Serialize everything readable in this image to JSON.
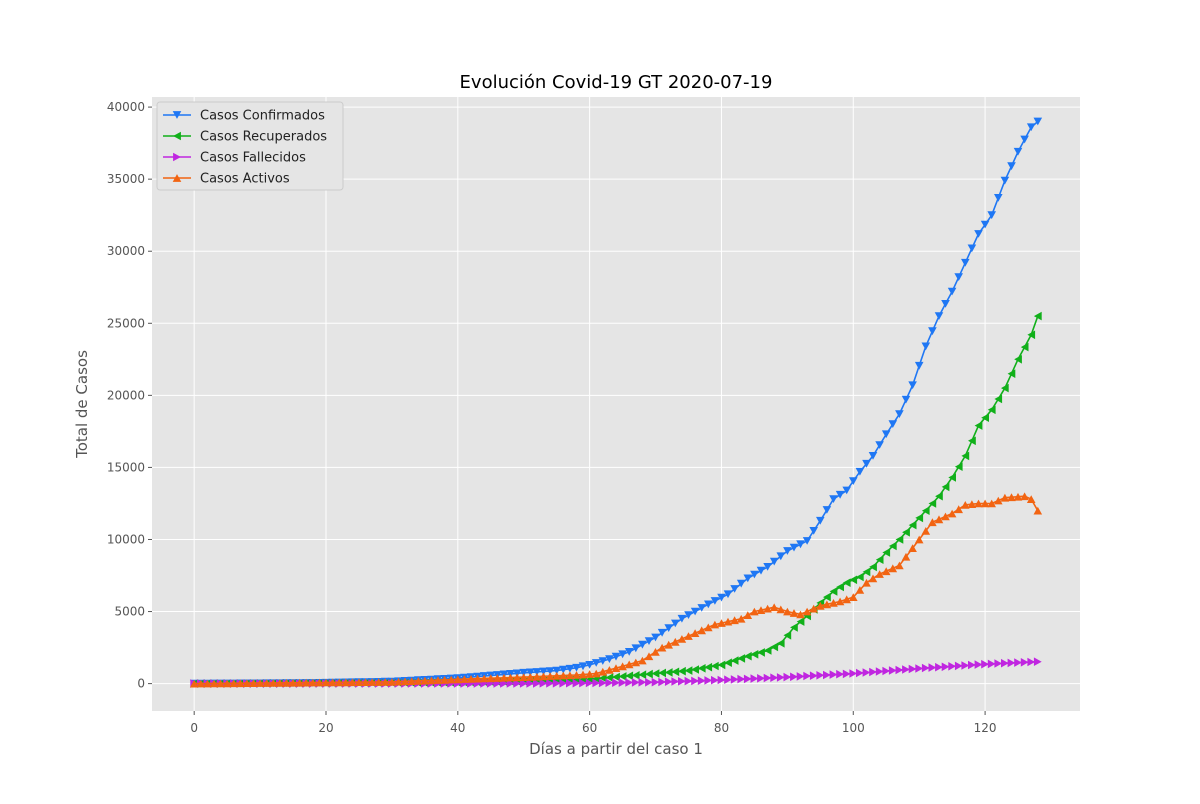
{
  "chart_data": {
    "type": "line",
    "title": "Evolución Covid-19 GT 2020-07-19",
    "xlabel": "Días a partir del caso 1",
    "ylabel": "Total de Casos",
    "xlim": [
      -6.4,
      134.4
    ],
    "ylim": [
      -1900,
      40700
    ],
    "x_ticks": [
      0,
      20,
      40,
      60,
      80,
      100,
      120
    ],
    "y_ticks": [
      0,
      5000,
      10000,
      15000,
      20000,
      25000,
      30000,
      35000,
      40000
    ],
    "grid": true,
    "legend_position": "upper-left",
    "x_range": [
      0,
      128
    ],
    "series": [
      {
        "name": "Casos Confirmados",
        "color": "#1f77f4",
        "marker": "triangle-down",
        "anchors": [
          [
            0,
            1
          ],
          [
            15,
            30
          ],
          [
            20,
            60
          ],
          [
            30,
            140
          ],
          [
            40,
            380
          ],
          [
            50,
            750
          ],
          [
            55,
            900
          ],
          [
            58,
            1100
          ],
          [
            60,
            1300
          ],
          [
            63,
            1700
          ],
          [
            66,
            2200
          ],
          [
            70,
            3200
          ],
          [
            74,
            4500
          ],
          [
            78,
            5500
          ],
          [
            81,
            6200
          ],
          [
            84,
            7300
          ],
          [
            87,
            8100
          ],
          [
            90,
            9200
          ],
          [
            93,
            9900
          ],
          [
            95,
            11300
          ],
          [
            97,
            12800
          ],
          [
            99,
            13400
          ],
          [
            101,
            14700
          ],
          [
            103,
            15800
          ],
          [
            105,
            17300
          ],
          [
            107,
            18700
          ],
          [
            109,
            20700
          ],
          [
            111,
            23400
          ],
          [
            113,
            25500
          ],
          [
            115,
            27200
          ],
          [
            117,
            29200
          ],
          [
            119,
            31200
          ],
          [
            121,
            32500
          ],
          [
            123,
            34900
          ],
          [
            125,
            36900
          ],
          [
            127,
            38600
          ],
          [
            128,
            39000
          ]
        ]
      },
      {
        "name": "Casos Recuperados",
        "color": "#11b01a",
        "marker": "triangle-left",
        "anchors": [
          [
            0,
            0
          ],
          [
            40,
            60
          ],
          [
            50,
            150
          ],
          [
            60,
            300
          ],
          [
            65,
            500
          ],
          [
            70,
            700
          ],
          [
            75,
            900
          ],
          [
            80,
            1300
          ],
          [
            84,
            1900
          ],
          [
            87,
            2300
          ],
          [
            89,
            2800
          ],
          [
            91,
            3900
          ],
          [
            93,
            4700
          ],
          [
            95,
            5600
          ],
          [
            97,
            6400
          ],
          [
            99,
            7000
          ],
          [
            101,
            7400
          ],
          [
            103,
            8100
          ],
          [
            105,
            9100
          ],
          [
            107,
            10000
          ],
          [
            109,
            11000
          ],
          [
            111,
            12000
          ],
          [
            113,
            13000
          ],
          [
            115,
            14300
          ],
          [
            117,
            15800
          ],
          [
            119,
            17900
          ],
          [
            121,
            19000
          ],
          [
            123,
            20500
          ],
          [
            125,
            22500
          ],
          [
            127,
            24200
          ],
          [
            128,
            25500
          ]
        ]
      },
      {
        "name": "Casos Fallecidos",
        "color": "#c026e0",
        "marker": "triangle-right",
        "anchors": [
          [
            0,
            0
          ],
          [
            40,
            10
          ],
          [
            55,
            20
          ],
          [
            60,
            40
          ],
          [
            70,
            100
          ],
          [
            80,
            250
          ],
          [
            90,
            450
          ],
          [
            100,
            700
          ],
          [
            110,
            1050
          ],
          [
            120,
            1350
          ],
          [
            128,
            1520
          ]
        ]
      },
      {
        "name": "Casos Activos",
        "color": "#f26412",
        "marker": "triangle-up",
        "anchors": [
          [
            0,
            0
          ],
          [
            30,
            120
          ],
          [
            40,
            300
          ],
          [
            50,
            450
          ],
          [
            58,
            600
          ],
          [
            61,
            700
          ],
          [
            65,
            1200
          ],
          [
            68,
            1600
          ],
          [
            71,
            2500
          ],
          [
            75,
            3300
          ],
          [
            79,
            4100
          ],
          [
            83,
            4500
          ],
          [
            85,
            5000
          ],
          [
            88,
            5300
          ],
          [
            90,
            5000
          ],
          [
            92,
            4800
          ],
          [
            95,
            5400
          ],
          [
            98,
            5700
          ],
          [
            100,
            6000
          ],
          [
            102,
            7000
          ],
          [
            104,
            7600
          ],
          [
            107,
            8200
          ],
          [
            110,
            10000
          ],
          [
            112,
            11200
          ],
          [
            115,
            11800
          ],
          [
            117,
            12400
          ],
          [
            119,
            12500
          ],
          [
            121,
            12500
          ],
          [
            123,
            12900
          ],
          [
            126,
            13000
          ],
          [
            127,
            12800
          ],
          [
            128,
            12000
          ]
        ]
      }
    ]
  }
}
